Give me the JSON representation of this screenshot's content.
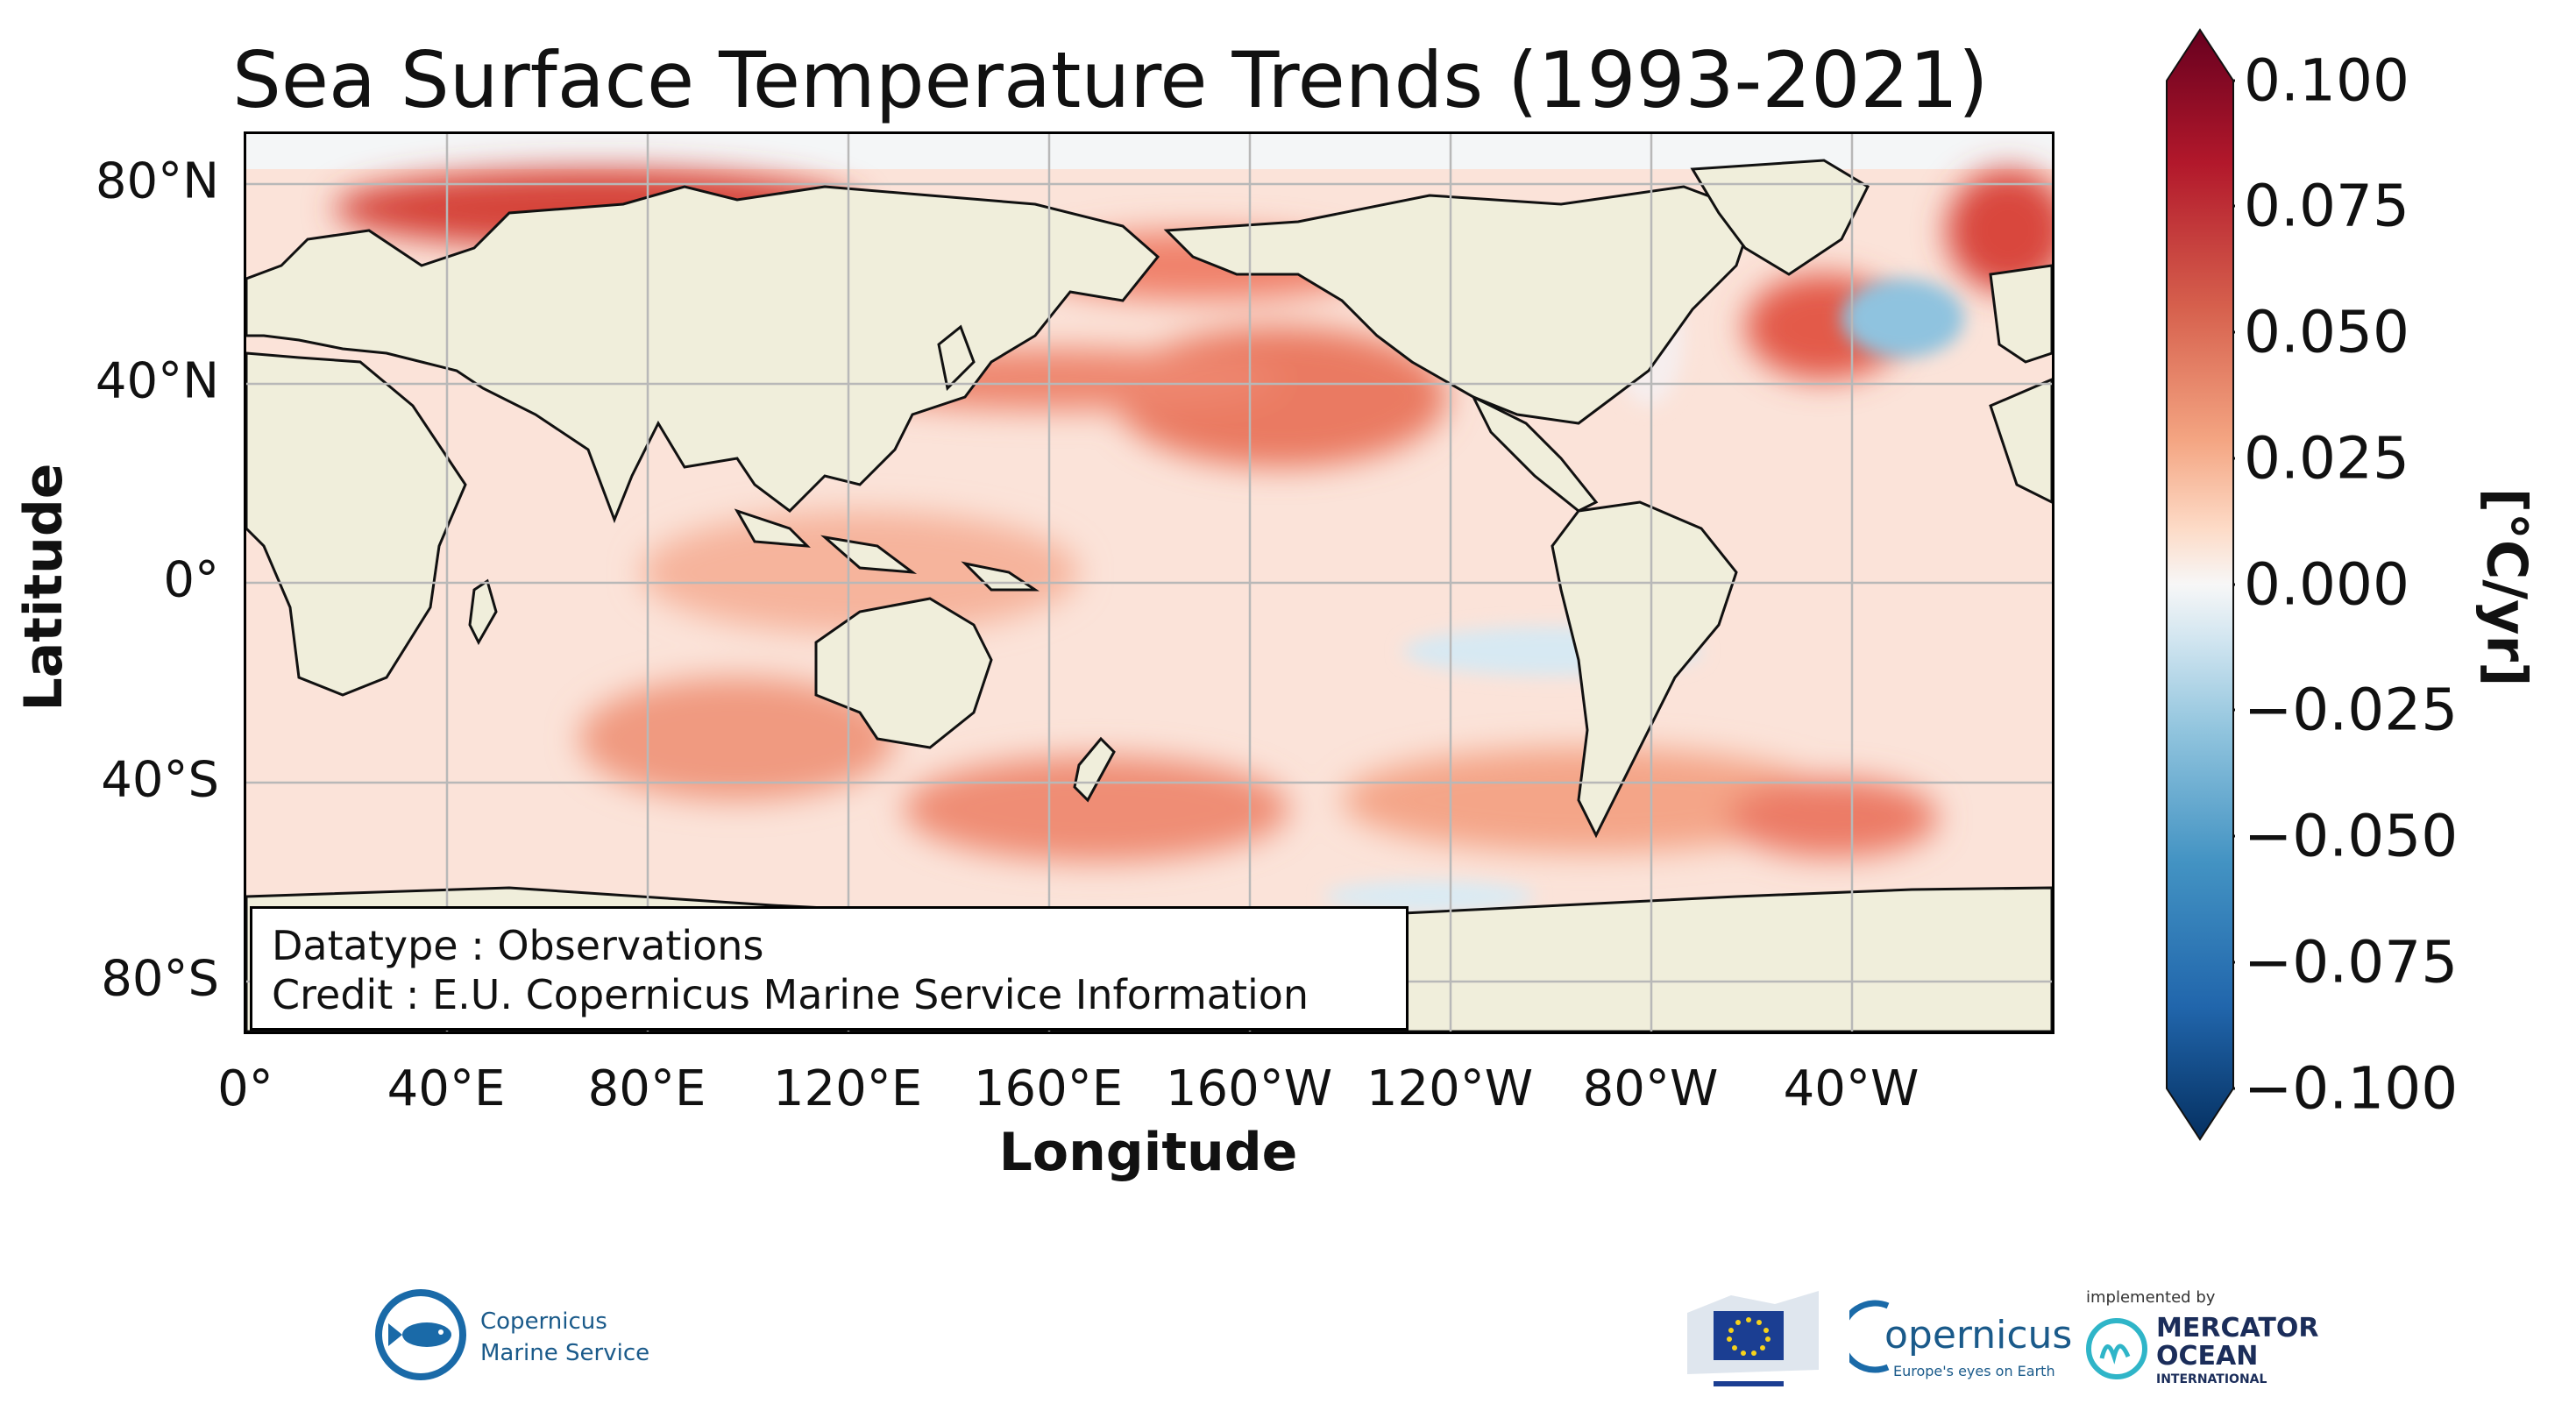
{
  "title": "Sea Surface Temperature Trends (1993-2021)",
  "xaxis": {
    "label": "Longitude",
    "ticks": [
      "0°",
      "40°E",
      "80°E",
      "120°E",
      "160°E",
      "160°W",
      "120°W",
      "80°W",
      "40°W"
    ]
  },
  "yaxis": {
    "label": "Latitude",
    "ticks": [
      "80°N",
      "40°N",
      "0°",
      "40°S",
      "80°S"
    ]
  },
  "credit_box": {
    "line1": "Datatype : Observations",
    "line2": "Credit : E.U. Copernicus Marine Service Information"
  },
  "colorbar": {
    "unit": "[°C/yr]",
    "ticks": [
      "0.100",
      "0.075",
      "0.050",
      "0.025",
      "0.000",
      "−0.025",
      "−0.050",
      "−0.075",
      "−0.100"
    ],
    "colors": [
      "#67001f",
      "#b2182b",
      "#d6604d",
      "#f4a582",
      "#fddbc7",
      "#f7f7f7",
      "#d1e5f0",
      "#92c5de",
      "#4393c3",
      "#2166ac",
      "#053061"
    ]
  },
  "map": {
    "land_color": "#f0eedb",
    "grid": true,
    "projection": "plate-carree",
    "central_longitude": "Pacific"
  },
  "logos": {
    "cmems": "Copernicus Marine Service",
    "copernicus": "opernicus",
    "copernicus_tagline": "Europe's eyes on Earth",
    "mercator_prefix": "implemented by",
    "mercator_line1": "MERCATOR",
    "mercator_line2": "OCEAN",
    "mercator_line3": "INTERNATIONAL"
  }
}
